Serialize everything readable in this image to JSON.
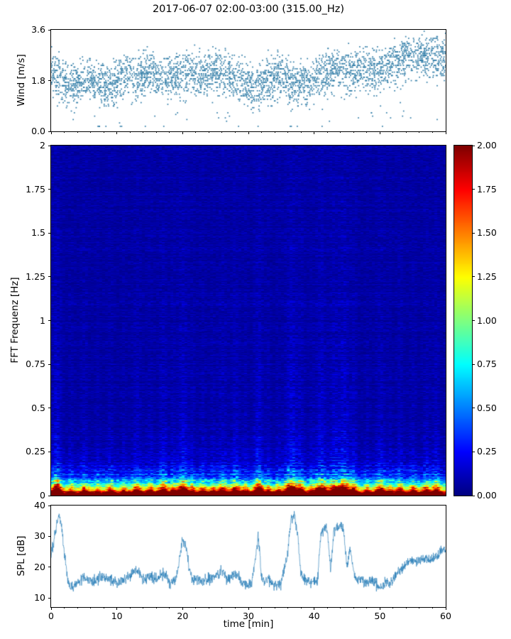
{
  "title": "2017-06-07 02:00-03:00 (315.00_Hz)",
  "colors": {
    "marker": "#2e7ba6",
    "line": "#1f77b4",
    "axis": "#000000",
    "colormap_low": "#00007f",
    "colormap_high": "#7f0000"
  },
  "chart_data": [
    {
      "id": "wind",
      "type": "scatter",
      "ylabel": "Wind [m/s]",
      "ylim": [
        0,
        3.6
      ],
      "yticks": [
        0.0,
        1.8,
        3.6
      ],
      "ytick_labels": [
        "0.0",
        "1.8",
        "3.6"
      ],
      "xlim": [
        0,
        60
      ],
      "marker_color": "#2e7ba6",
      "n_points": 3600,
      "spread_sd": 0.42,
      "quantize_step": 0.06,
      "envelope_keypoints": [
        [
          0,
          2.1
        ],
        [
          2,
          1.8
        ],
        [
          3,
          1.5
        ],
        [
          5,
          1.9
        ],
        [
          7,
          1.7
        ],
        [
          9,
          1.5
        ],
        [
          11,
          1.9
        ],
        [
          13,
          2.0
        ],
        [
          15,
          2.1
        ],
        [
          17,
          1.9
        ],
        [
          19,
          2.0
        ],
        [
          21,
          2.1
        ],
        [
          23,
          2.0
        ],
        [
          25,
          2.2
        ],
        [
          27,
          2.0
        ],
        [
          29,
          1.8
        ],
        [
          31,
          1.5
        ],
        [
          33,
          1.8
        ],
        [
          35,
          2.0
        ],
        [
          37,
          1.6
        ],
        [
          39,
          1.7
        ],
        [
          41,
          2.0
        ],
        [
          43,
          2.2
        ],
        [
          45,
          2.1
        ],
        [
          47,
          2.2
        ],
        [
          49,
          2.1
        ],
        [
          51,
          2.3
        ],
        [
          53,
          2.5
        ],
        [
          55,
          2.6
        ],
        [
          57,
          2.7
        ],
        [
          59,
          2.6
        ],
        [
          60,
          2.5
        ]
      ]
    },
    {
      "id": "spectrogram",
      "type": "heatmap",
      "ylabel": "FFT Frequenz [Hz]",
      "ylim": [
        0,
        2
      ],
      "yticks": [
        0,
        0.25,
        0.5,
        0.75,
        1,
        1.25,
        1.5,
        1.75,
        2
      ],
      "ytick_labels": [
        "0",
        "0.25",
        "0.5",
        "0.75",
        "1",
        "1.25",
        "1.5",
        "1.75",
        "2"
      ],
      "xlim": [
        0,
        60
      ],
      "colormap": "jet",
      "value_range": [
        0,
        2
      ],
      "colorbar_ticks": [
        0,
        0.25,
        0.5,
        0.75,
        1,
        1.25,
        1.5,
        1.75,
        2
      ],
      "colorbar_tick_labels": [
        "0.00",
        "0.25",
        "0.50",
        "0.75",
        "1.00",
        "1.25",
        "1.50",
        "1.75",
        "2.00"
      ],
      "intensity_profile": {
        "frequencies_hz": [
          0,
          0.02,
          0.05,
          0.1,
          0.15,
          0.25,
          0.5,
          1,
          2
        ],
        "mean_values": [
          2.0,
          1.9,
          1.35,
          0.65,
          0.38,
          0.22,
          0.14,
          0.13,
          0.13
        ]
      },
      "base_profile": {
        "floor": 0.13,
        "amp": 2.8,
        "decay_hz": 0.06
      },
      "events": [
        {
          "t_min": 0.8,
          "width_min": 0.5,
          "amplitude": 1.3
        },
        {
          "t_min": 3,
          "width_min": 0.3,
          "amplitude": 0.4
        },
        {
          "t_min": 5,
          "width_min": 0.4,
          "amplitude": 0.5
        },
        {
          "t_min": 7,
          "width_min": 0.3,
          "amplitude": 0.4
        },
        {
          "t_min": 9,
          "width_min": 0.4,
          "amplitude": 0.5
        },
        {
          "t_min": 11,
          "width_min": 0.3,
          "amplitude": 0.4
        },
        {
          "t_min": 13,
          "width_min": 0.5,
          "amplitude": 0.7
        },
        {
          "t_min": 15,
          "width_min": 0.4,
          "amplitude": 0.5
        },
        {
          "t_min": 17,
          "width_min": 0.5,
          "amplitude": 0.9
        },
        {
          "t_min": 18.5,
          "width_min": 0.3,
          "amplitude": 0.5
        },
        {
          "t_min": 20,
          "width_min": 0.6,
          "amplitude": 1.1
        },
        {
          "t_min": 21.5,
          "width_min": 0.3,
          "amplitude": 0.5
        },
        {
          "t_min": 23,
          "width_min": 0.4,
          "amplitude": 0.5
        },
        {
          "t_min": 24.5,
          "width_min": 0.3,
          "amplitude": 0.4
        },
        {
          "t_min": 26,
          "width_min": 0.5,
          "amplitude": 0.7
        },
        {
          "t_min": 28,
          "width_min": 0.5,
          "amplitude": 0.8
        },
        {
          "t_min": 29.5,
          "width_min": 0.3,
          "amplitude": 0.5
        },
        {
          "t_min": 31.5,
          "width_min": 0.5,
          "amplitude": 1.2
        },
        {
          "t_min": 33,
          "width_min": 0.3,
          "amplitude": 0.5
        },
        {
          "t_min": 34.5,
          "width_min": 0.3,
          "amplitude": 0.4
        },
        {
          "t_min": 36.5,
          "width_min": 0.7,
          "amplitude": 1.4
        },
        {
          "t_min": 38,
          "width_min": 0.4,
          "amplitude": 0.7
        },
        {
          "t_min": 39.5,
          "width_min": 0.3,
          "amplitude": 0.4
        },
        {
          "t_min": 41,
          "width_min": 0.6,
          "amplitude": 1.2
        },
        {
          "t_min": 43,
          "width_min": 0.5,
          "amplitude": 1.0
        },
        {
          "t_min": 44.5,
          "width_min": 0.6,
          "amplitude": 1.3
        },
        {
          "t_min": 46,
          "width_min": 0.4,
          "amplitude": 0.7
        },
        {
          "t_min": 48,
          "width_min": 0.3,
          "amplitude": 0.4
        },
        {
          "t_min": 50,
          "width_min": 0.5,
          "amplitude": 0.8
        },
        {
          "t_min": 51.5,
          "width_min": 0.3,
          "amplitude": 0.4
        },
        {
          "t_min": 53,
          "width_min": 0.4,
          "amplitude": 0.6
        },
        {
          "t_min": 55,
          "width_min": 0.4,
          "amplitude": 0.5
        },
        {
          "t_min": 57,
          "width_min": 0.4,
          "amplitude": 0.6
        },
        {
          "t_min": 58.5,
          "width_min": 0.4,
          "amplitude": 0.7
        }
      ]
    },
    {
      "id": "spl",
      "type": "line",
      "ylabel": "SPL [dB]",
      "xlabel": "time [min]",
      "ylim": [
        7,
        40
      ],
      "yticks": [
        10,
        20,
        30,
        40
      ],
      "ytick_labels": [
        "10",
        "20",
        "30",
        "40"
      ],
      "xticks": [
        0,
        10,
        20,
        30,
        40,
        50,
        60
      ],
      "xtick_labels": [
        "0",
        "10",
        "20",
        "30",
        "40",
        "50",
        "60"
      ],
      "line_color": "#1f77b4",
      "noise_sd": 1.1,
      "keypoints": [
        [
          0,
          24
        ],
        [
          0.4,
          28
        ],
        [
          0.8,
          33
        ],
        [
          1.2,
          37
        ],
        [
          1.6,
          34
        ],
        [
          2,
          25
        ],
        [
          2.5,
          16
        ],
        [
          3,
          13
        ],
        [
          3.5,
          14
        ],
        [
          4,
          15
        ],
        [
          5,
          16
        ],
        [
          6,
          15
        ],
        [
          7,
          16
        ],
        [
          8,
          17
        ],
        [
          9,
          16
        ],
        [
          10,
          15
        ],
        [
          11,
          16
        ],
        [
          12,
          17
        ],
        [
          13,
          20
        ],
        [
          13.5,
          18
        ],
        [
          14,
          16
        ],
        [
          15,
          17
        ],
        [
          16,
          16
        ],
        [
          17,
          18
        ],
        [
          17.5,
          17
        ],
        [
          18,
          15
        ],
        [
          19,
          16
        ],
        [
          20,
          29
        ],
        [
          20.5,
          27
        ],
        [
          21,
          19
        ],
        [
          21.5,
          16
        ],
        [
          22,
          16
        ],
        [
          23,
          15
        ],
        [
          24,
          16
        ],
        [
          25,
          17
        ],
        [
          26,
          19
        ],
        [
          26.5,
          17
        ],
        [
          27,
          16
        ],
        [
          28,
          18
        ],
        [
          28.5,
          17
        ],
        [
          29,
          15
        ],
        [
          30,
          14
        ],
        [
          30.5,
          15
        ],
        [
          31,
          22
        ],
        [
          31.5,
          30
        ],
        [
          32,
          17
        ],
        [
          32.5,
          15
        ],
        [
          33,
          16
        ],
        [
          34,
          14
        ],
        [
          35,
          15
        ],
        [
          36,
          25
        ],
        [
          36.5,
          36
        ],
        [
          37,
          37
        ],
        [
          37.5,
          30
        ],
        [
          38,
          18
        ],
        [
          38.5,
          16
        ],
        [
          39,
          15
        ],
        [
          40,
          16
        ],
        [
          40.5,
          15
        ],
        [
          41,
          30
        ],
        [
          41.5,
          33
        ],
        [
          42,
          32
        ],
        [
          42.5,
          20
        ],
        [
          43,
          31
        ],
        [
          43.5,
          33
        ],
        [
          44,
          34
        ],
        [
          44.5,
          32
        ],
        [
          45,
          20
        ],
        [
          45.5,
          26
        ],
        [
          46,
          18
        ],
        [
          46.5,
          16
        ],
        [
          47,
          16
        ],
        [
          48,
          15
        ],
        [
          49,
          16
        ],
        [
          50,
          13
        ],
        [
          50.5,
          14
        ],
        [
          51,
          15
        ],
        [
          51.5,
          14
        ],
        [
          52,
          16
        ],
        [
          53,
          19
        ],
        [
          54,
          21
        ],
        [
          55,
          22
        ],
        [
          55.5,
          21
        ],
        [
          56,
          22
        ],
        [
          57,
          23
        ],
        [
          57.5,
          22
        ],
        [
          58,
          23
        ],
        [
          59,
          24
        ],
        [
          59.5,
          26
        ],
        [
          60,
          25
        ]
      ]
    }
  ]
}
